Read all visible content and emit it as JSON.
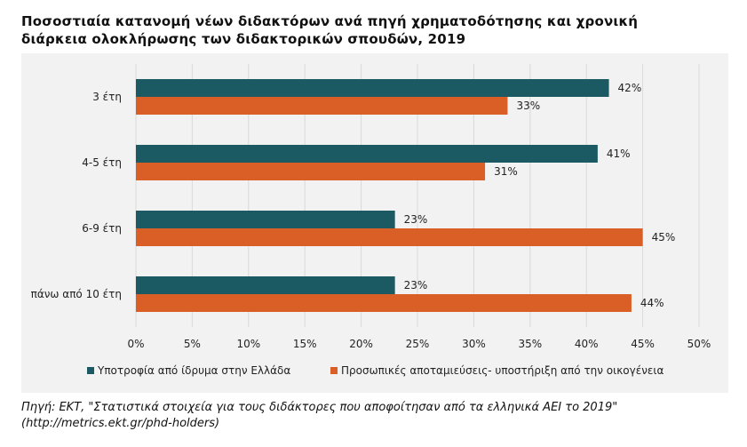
{
  "title_line1": "Ποσοστιαία κατανομή νέων διδακτόρων ανά πηγή χρηματοδότησης και χρονική",
  "title_line2": "διάρκεια ολοκλήρωσης των διδακτορικών σπουδών, 2019",
  "source_line1": "Πηγή: ΕΚΤ, \"Στατιστικά στοιχεία για τους διδάκτορες που αποφοίτησαν από τα ελληνικά ΑΕΙ το 2019\"",
  "source_line2": "(http://metrics.ekt.gr/phd-holders)",
  "colors": {
    "series1": "#1b5a63",
    "series2": "#d95f26",
    "background": "#f2f2f2",
    "gridline": "#d9d9d9"
  },
  "chart_data": {
    "type": "bar",
    "orientation": "horizontal",
    "categories": [
      "3 έτη",
      "4-5 έτη",
      "6-9 έτη",
      "πάνω από 10 έτη"
    ],
    "series": [
      {
        "name": "Υποτροφία από ίδρυμα στην Ελλάδα",
        "values": [
          42,
          41,
          23,
          23
        ]
      },
      {
        "name": "Προσωπικές αποταμιεύσεις- υποστήριξη από την οικογένεια",
        "values": [
          33,
          31,
          45,
          44
        ]
      }
    ],
    "data_labels": [
      [
        "42%",
        "41%",
        "23%",
        "23%"
      ],
      [
        "33%",
        "31%",
        "45%",
        "44%"
      ]
    ],
    "x_ticks": [
      "0%",
      "5%",
      "10%",
      "15%",
      "20%",
      "25%",
      "30%",
      "35%",
      "40%",
      "45%",
      "50%"
    ],
    "xlim": [
      0,
      50
    ],
    "grid": true,
    "legend_position": "bottom"
  }
}
